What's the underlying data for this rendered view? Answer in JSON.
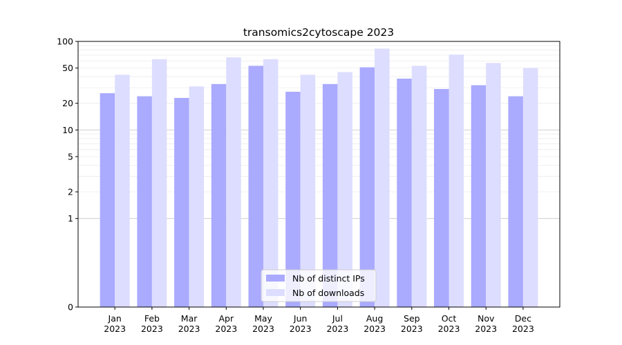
{
  "chart_data": {
    "type": "bar",
    "title": "transomics2cytoscape 2023",
    "xlabel": "",
    "ylabel": "",
    "y_scale": "symlog",
    "ylim": [
      0,
      100
    ],
    "yticks": [
      0,
      1,
      2,
      5,
      10,
      20,
      50,
      100
    ],
    "grid": true,
    "legend_position": "lower-center",
    "categories": [
      "Jan\n2023",
      "Feb\n2023",
      "Mar\n2023",
      "Apr\n2023",
      "May\n2023",
      "Jun\n2023",
      "Jul\n2023",
      "Aug\n2023",
      "Sep\n2023",
      "Oct\n2023",
      "Nov\n2023",
      "Dec\n2023"
    ],
    "series": [
      {
        "name": "Nb of distinct IPs",
        "color": "#aaaaff",
        "values": [
          26,
          24,
          23,
          33,
          53,
          27,
          33,
          51,
          38,
          29,
          32,
          24
        ]
      },
      {
        "name": "Nb of downloads",
        "color": "#ddddff",
        "values": [
          42,
          63,
          31,
          66,
          63,
          42,
          45,
          83,
          53,
          71,
          57,
          50
        ]
      }
    ]
  }
}
